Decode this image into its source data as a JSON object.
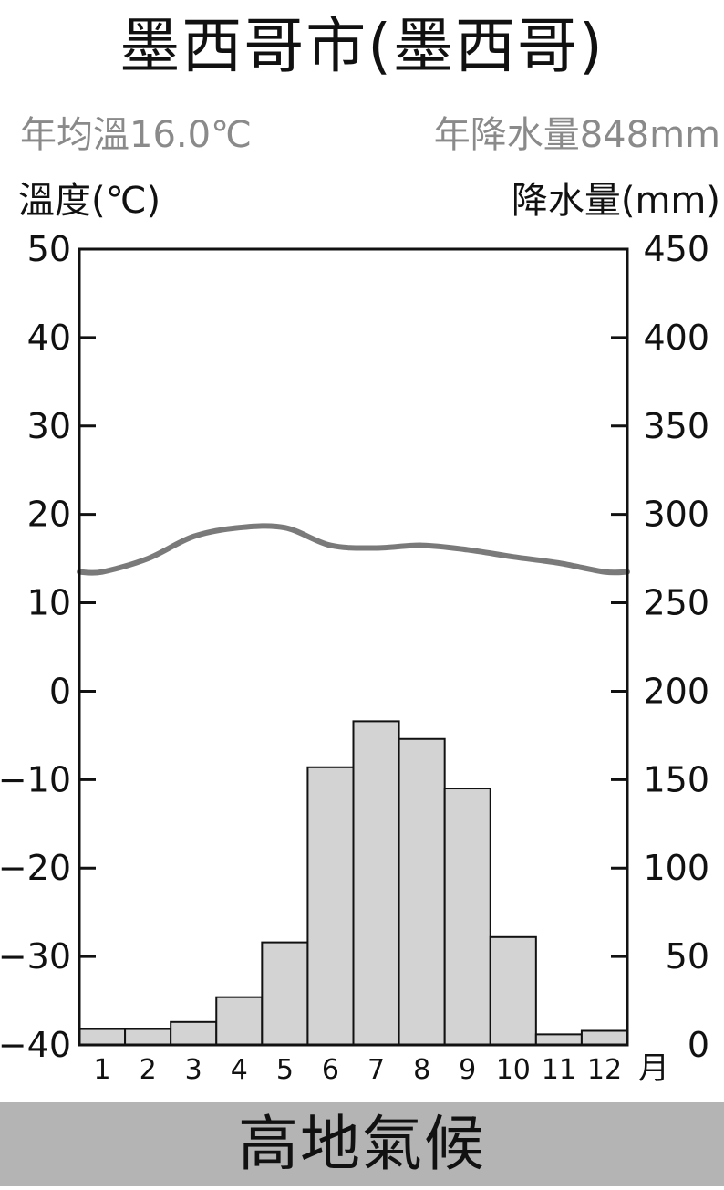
{
  "title": "墨西哥市(墨西哥)",
  "stats": {
    "annual_temp": "年均溫16.0℃",
    "annual_precip": "年降水量848mm"
  },
  "footer": "高地氣候",
  "colors": {
    "bar_fill": "#d3d3d3",
    "temp_line": "#7a7a7a",
    "footer_bg": "#b4b4b4",
    "stats_text": "#8a8a8a"
  },
  "chart_data": {
    "type": "bar+line",
    "title": "墨西哥市(墨西哥)",
    "x_unit": "月",
    "categories": [
      "1",
      "2",
      "3",
      "4",
      "5",
      "6",
      "7",
      "8",
      "9",
      "10",
      "11",
      "12"
    ],
    "left_axis": {
      "label": "溫度(℃)",
      "min": -40,
      "max": 50,
      "ticks": [
        "50",
        "40",
        "30",
        "20",
        "10",
        "0",
        "-10",
        "-20",
        "-30",
        "-40"
      ]
    },
    "right_axis": {
      "label": "降水量(mm)",
      "min": 0,
      "max": 450,
      "ticks": [
        "450",
        "400",
        "350",
        "300",
        "250",
        "200",
        "150",
        "100",
        "50",
        "0"
      ]
    },
    "series": [
      {
        "kind": "bar",
        "axis": "right",
        "values": [
          9,
          9,
          13,
          27,
          58,
          157,
          183,
          173,
          145,
          61,
          6,
          8
        ]
      },
      {
        "kind": "line",
        "axis": "left",
        "values": [
          13.5,
          15.0,
          17.5,
          18.5,
          18.5,
          16.5,
          16.2,
          16.5,
          16.0,
          15.2,
          14.5,
          13.5
        ]
      }
    ],
    "grid": false,
    "legend": "none"
  }
}
